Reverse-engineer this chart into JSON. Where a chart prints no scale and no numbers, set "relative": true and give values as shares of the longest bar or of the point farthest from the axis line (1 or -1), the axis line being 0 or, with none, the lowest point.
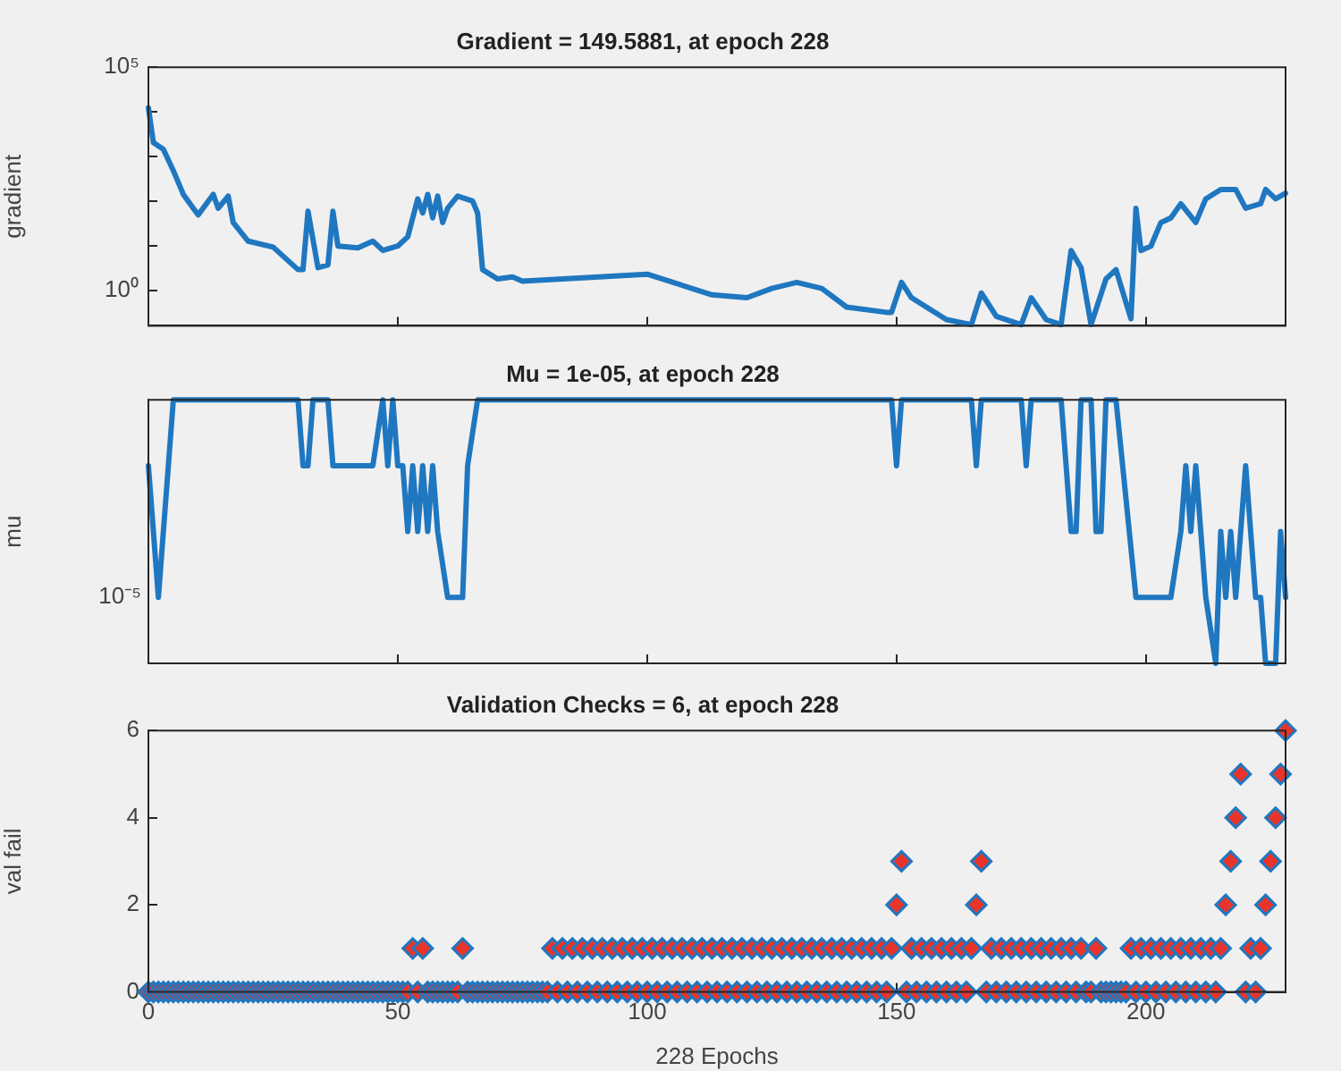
{
  "chart_data": [
    {
      "type": "line",
      "title": "Gradient = 149.5881, at epoch 228",
      "ylabel": "gradient",
      "log": "y",
      "xlim": [
        0,
        228
      ],
      "xticks": [
        0,
        50,
        100,
        150,
        200
      ],
      "ylim": [
        0.16,
        100000
      ],
      "yticks": [
        {
          "value": 1,
          "label": "10⁰"
        },
        {
          "value": 10,
          "label": null
        },
        {
          "value": 100,
          "label": null
        },
        {
          "value": 1000,
          "label": null
        },
        {
          "value": 10000,
          "label": null
        },
        {
          "value": 100000,
          "label": "10⁵"
        }
      ],
      "tick_labels": "y",
      "marker": "none",
      "line_style": "solid",
      "series": [
        {
          "color": "#1f77c0",
          "x": [
            0,
            1,
            3,
            5,
            7,
            9,
            10,
            13,
            14,
            16,
            17,
            20,
            25,
            30,
            31,
            32,
            34,
            36,
            37,
            38,
            42,
            45,
            47,
            50,
            52,
            54,
            55,
            56,
            57,
            58,
            59,
            60,
            62,
            65,
            66,
            67,
            70,
            73,
            75,
            100,
            113,
            120,
            125,
            130,
            135,
            140,
            148,
            149,
            151,
            153,
            160,
            165,
            167,
            170,
            175,
            177,
            180,
            183,
            185,
            187,
            189,
            192,
            194,
            197,
            198,
            199,
            201,
            203,
            205,
            207,
            210,
            212,
            215,
            218,
            220,
            223,
            224,
            226,
            228
          ],
          "values": [
            12300,
            2040,
            1450,
            479,
            141,
            69,
            49,
            141,
            69,
            129,
            33,
            12.6,
            9.3,
            2.9,
            2.9,
            59,
            3.2,
            3.7,
            59,
            9.8,
            8.9,
            12.6,
            7.8,
            9.8,
            15.8,
            112,
            54,
            141,
            42,
            129,
            33,
            69,
            129,
            100,
            54,
            2.9,
            1.8,
            2,
            1.6,
            2.3,
            0.79,
            0.68,
            1.1,
            1.5,
            1.1,
            0.42,
            0.32,
            0.32,
            1.5,
            0.68,
            0.22,
            0.17,
            0.87,
            0.26,
            0.17,
            0.68,
            0.22,
            0.17,
            7.8,
            3.2,
            0.17,
            1.8,
            2.9,
            0.23,
            69,
            7.8,
            9.8,
            33,
            42,
            87,
            33,
            112,
            182,
            182,
            69,
            87,
            182,
            112,
            150
          ]
        }
      ]
    },
    {
      "type": "line",
      "title": "Mu = 1e-05, at epoch 228",
      "ylabel": "mu",
      "relative": true,
      "annotations": [
        "10⁻⁵"
      ],
      "xlim": [
        0,
        228
      ],
      "xticks": [
        0,
        50,
        100,
        150,
        200
      ],
      "tick_labels": false,
      "marker": "none",
      "line_style": "solid",
      "series": [
        {
          "color": "#1f77c0",
          "x": [
            0,
            1,
            2,
            3,
            4,
            5,
            30,
            31,
            32,
            33,
            36,
            37,
            45,
            47,
            48,
            49,
            50,
            51,
            52,
            53,
            54,
            55,
            56,
            57,
            58,
            60,
            63,
            64,
            66,
            149,
            150,
            151,
            165,
            166,
            167,
            175,
            176,
            177,
            183,
            185,
            186,
            187,
            189,
            190,
            191,
            192,
            194,
            198,
            205,
            207,
            208,
            209,
            210,
            211,
            212,
            214,
            215,
            216,
            217,
            218,
            220,
            222,
            223,
            224,
            226,
            227,
            228
          ],
          "values": [
            0.75,
            0.5,
            0.25,
            0.5,
            0.75,
            1,
            1,
            0.75,
            0.75,
            1,
            1,
            0.75,
            0.75,
            1,
            0.75,
            1,
            0.75,
            0.75,
            0.5,
            0.75,
            0.5,
            0.75,
            0.5,
            0.75,
            0.5,
            0.25,
            0.25,
            0.75,
            1,
            1,
            0.75,
            1,
            1,
            0.75,
            1,
            1,
            0.75,
            1,
            1,
            0.5,
            0.5,
            1,
            1,
            0.5,
            0.5,
            1,
            1,
            0.25,
            0.25,
            0.5,
            0.75,
            0.5,
            0.75,
            0.5,
            0.25,
            0,
            0.5,
            0.25,
            0.5,
            0.25,
            0.75,
            0.25,
            0.25,
            0,
            0,
            0.5,
            0.25
          ]
        }
      ]
    },
    {
      "type": "scatter",
      "title": "Validation Checks = 6, at epoch 228",
      "xlabel": "228 Epochs",
      "ylabel": "val fail",
      "xlim": [
        0,
        228
      ],
      "xticks": [
        0,
        50,
        100,
        150,
        200
      ],
      "ylim": [
        0,
        6
      ],
      "yticks": [
        0,
        2,
        4,
        6
      ],
      "marker": "diamond",
      "series": [
        {
          "color": "#e8342b",
          "x": [
            0,
            1,
            2,
            3,
            4,
            5,
            6,
            7,
            8,
            9,
            10,
            11,
            12,
            13,
            14,
            15,
            16,
            17,
            18,
            19,
            20,
            21,
            22,
            23,
            24,
            25,
            26,
            27,
            28,
            29,
            30,
            31,
            32,
            33,
            34,
            35,
            36,
            37,
            38,
            39,
            40,
            41,
            42,
            43,
            44,
            45,
            46,
            47,
            48,
            49,
            50,
            51,
            52,
            53,
            54,
            55,
            56,
            57,
            58,
            59,
            60,
            61,
            62,
            63,
            64,
            65,
            66,
            67,
            68,
            69,
            70,
            71,
            72,
            73,
            74,
            75,
            76,
            77,
            78,
            79,
            80,
            81,
            82,
            83,
            84,
            85,
            86,
            87,
            88,
            89,
            90,
            91,
            92,
            93,
            94,
            95,
            96,
            97,
            98,
            99,
            100,
            101,
            102,
            103,
            104,
            105,
            106,
            107,
            108,
            109,
            110,
            111,
            112,
            113,
            114,
            115,
            116,
            117,
            118,
            119,
            120,
            121,
            122,
            123,
            124,
            125,
            126,
            127,
            128,
            129,
            130,
            131,
            132,
            133,
            134,
            135,
            136,
            137,
            138,
            139,
            140,
            141,
            142,
            143,
            144,
            145,
            146,
            147,
            148,
            149,
            150,
            151,
            152,
            153,
            154,
            155,
            156,
            157,
            158,
            159,
            160,
            161,
            162,
            163,
            164,
            165,
            166,
            167,
            168,
            169,
            170,
            171,
            172,
            173,
            174,
            175,
            176,
            177,
            178,
            179,
            180,
            181,
            182,
            183,
            184,
            185,
            186,
            187,
            188,
            189,
            190,
            191,
            192,
            193,
            194,
            195,
            196,
            197,
            198,
            199,
            200,
            201,
            202,
            203,
            204,
            205,
            206,
            207,
            208,
            209,
            210,
            211,
            212,
            213,
            214,
            215,
            216,
            217,
            218,
            219,
            220,
            221,
            222,
            223,
            224,
            225,
            226,
            227,
            228
          ],
          "values": [
            0,
            0,
            0,
            0,
            0,
            0,
            0,
            0,
            0,
            0,
            0,
            0,
            0,
            0,
            0,
            0,
            0,
            0,
            0,
            0,
            0,
            0,
            0,
            0,
            0,
            0,
            0,
            0,
            0,
            0,
            0,
            0,
            0,
            0,
            0,
            0,
            0,
            0,
            0,
            0,
            0,
            0,
            0,
            0,
            0,
            0,
            0,
            0,
            0,
            0,
            0,
            0,
            0,
            1,
            0,
            1,
            0,
            0,
            0,
            0,
            0,
            0,
            0,
            1,
            0,
            0,
            0,
            0,
            0,
            0,
            0,
            0,
            0,
            0,
            0,
            0,
            0,
            0,
            0,
            0,
            0,
            1,
            0,
            1,
            0,
            1,
            0,
            1,
            0,
            1,
            0,
            1,
            0,
            1,
            0,
            1,
            0,
            1,
            0,
            1,
            0,
            1,
            0,
            1,
            0,
            1,
            0,
            1,
            0,
            1,
            0,
            1,
            0,
            1,
            0,
            1,
            0,
            1,
            0,
            1,
            0,
            1,
            0,
            1,
            0,
            1,
            0,
            1,
            0,
            1,
            0,
            1,
            0,
            1,
            0,
            1,
            0,
            1,
            0,
            1,
            0,
            1,
            0,
            1,
            0,
            1,
            0,
            1,
            0,
            1,
            2,
            3,
            0,
            1,
            0,
            1,
            0,
            1,
            0,
            1,
            0,
            1,
            0,
            1,
            0,
            1,
            2,
            3,
            0,
            1,
            0,
            1,
            0,
            1,
            0,
            1,
            0,
            1,
            0,
            1,
            0,
            1,
            0,
            1,
            0,
            1,
            0,
            1,
            0,
            0,
            1,
            0,
            0,
            0,
            0,
            0,
            0,
            1,
            0,
            1,
            0,
            1,
            0,
            1,
            0,
            1,
            0,
            1,
            0,
            1,
            0,
            1,
            0,
            1,
            0,
            1,
            2,
            3,
            4,
            5,
            0,
            1,
            0,
            1,
            2,
            3,
            4,
            5,
            6
          ]
        }
      ]
    }
  ]
}
